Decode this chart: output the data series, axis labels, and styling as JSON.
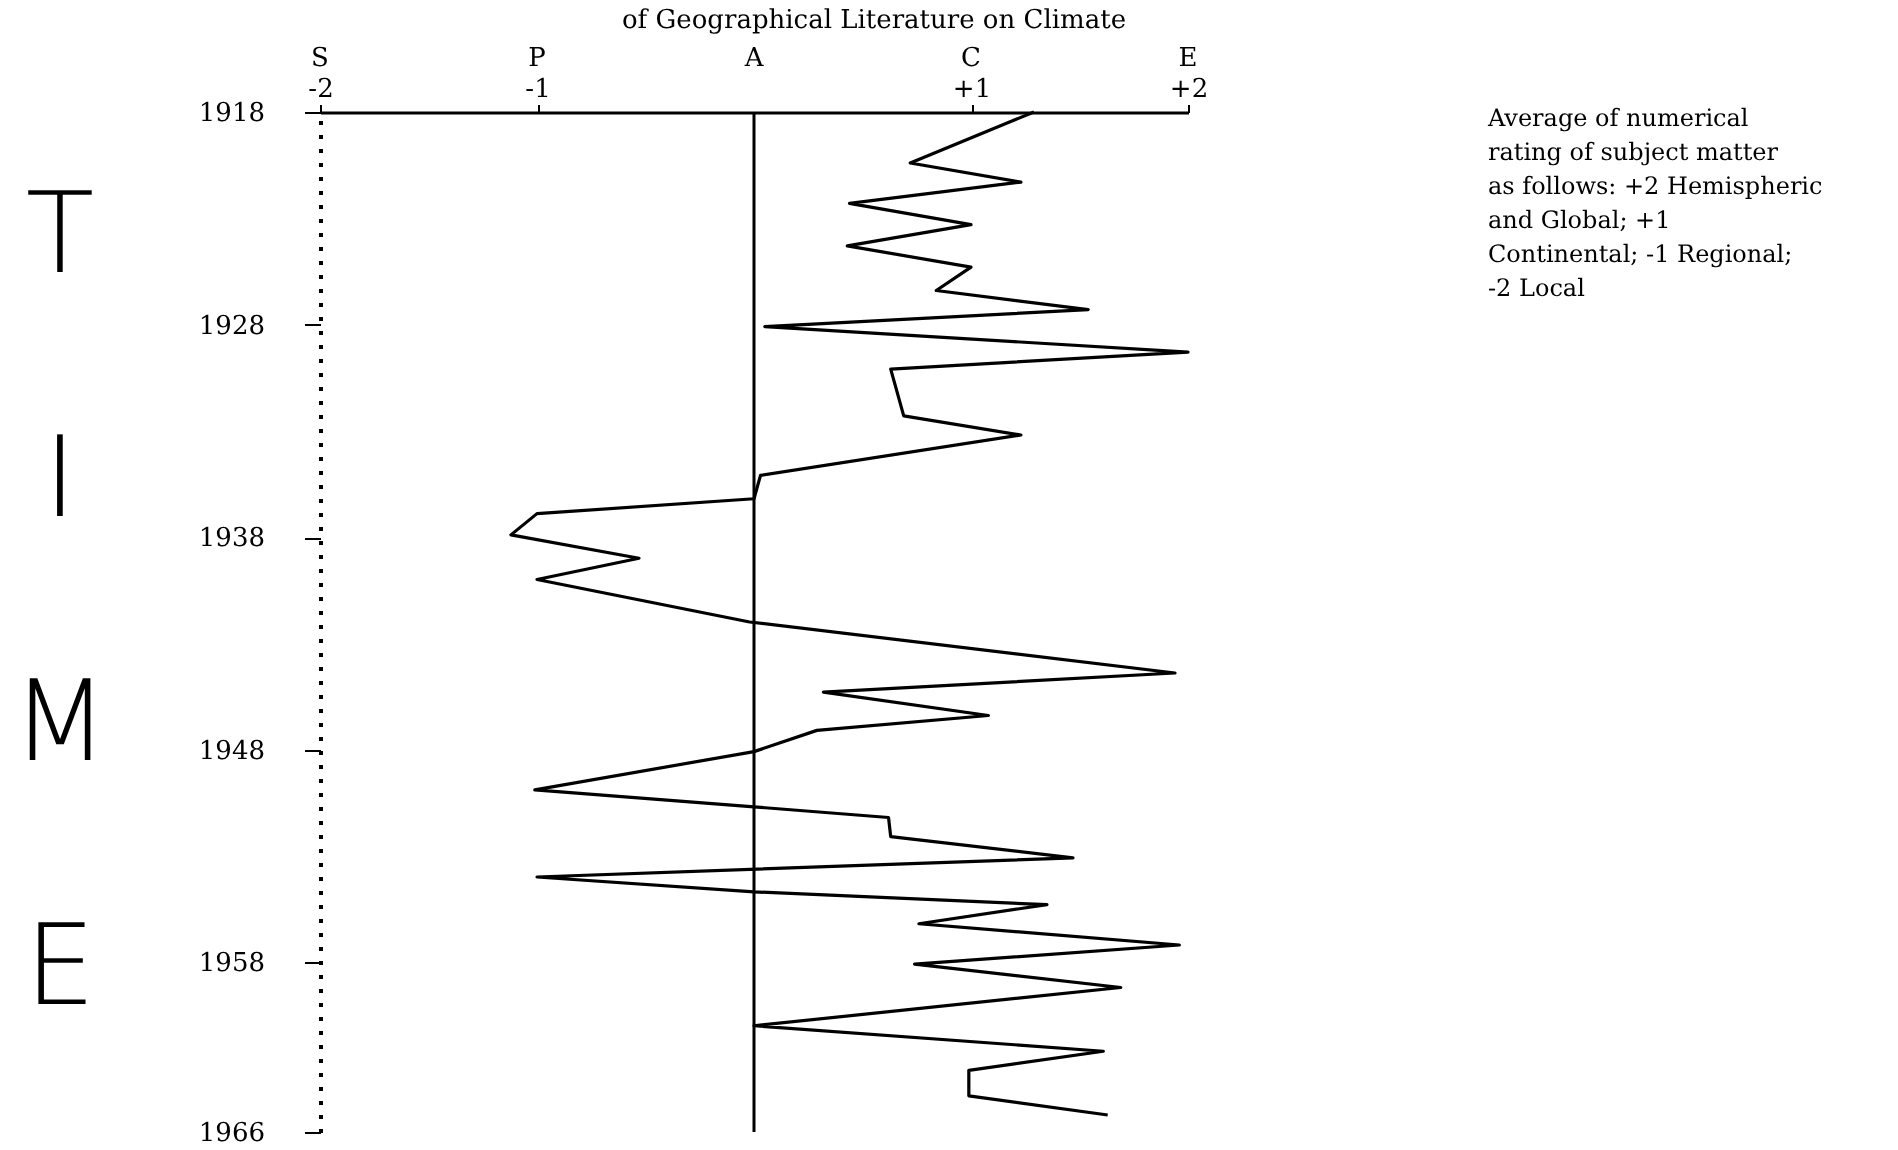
{
  "chart_data": {
    "type": "line",
    "title": "of Geographical Literature on Climate",
    "ylabel": "TIME",
    "x": [
      1.29,
      0.72,
      1.23,
      0.44,
      1.0,
      0.43,
      1.0,
      0.84,
      1.54,
      0.05,
      2.0,
      0.63,
      0.69,
      1.23,
      0.03,
      0.0,
      -1.0,
      -1.12,
      -0.53,
      -1.0,
      -0.02,
      1.94,
      0.32,
      1.08,
      0.29,
      0.0,
      -1.01,
      0.0,
      0.62,
      0.63,
      1.47,
      -1.0,
      0.0,
      1.35,
      0.76,
      1.96,
      0.74,
      1.69,
      0.0,
      1.61,
      0.99,
      0.99,
      1.63
    ],
    "values": [
      1918.0,
      1920.4,
      1921.3,
      1922.3,
      1923.3,
      1924.3,
      1925.3,
      1926.4,
      1927.3,
      1928.1,
      1929.3,
      1930.1,
      1932.3,
      1933.2,
      1935.1,
      1936.2,
      1936.9,
      1937.9,
      1939.0,
      1940.0,
      1942.0,
      1944.4,
      1945.3,
      1946.4,
      1947.1,
      1948.1,
      1949.9,
      1950.7,
      1951.2,
      1952.1,
      1953.1,
      1954.0,
      1954.7,
      1955.3,
      1956.2,
      1957.2,
      1958.1,
      1959.2,
      1961.0,
      1962.2,
      1963.1,
      1964.3,
      1965.2
    ],
    "color": "#000000",
    "xlim": [
      -2,
      2
    ],
    "xticks": [
      -2,
      -1,
      {
        "value": 1,
        "label": "+1"
      },
      {
        "value": 2,
        "label": "+2"
      }
    ],
    "ylim": [
      1966,
      1918
    ],
    "yticks": [
      1918,
      1928,
      1938,
      1948,
      1958,
      1966
    ],
    "ref_lines": [
      {
        "axis": "x",
        "value": 0,
        "label": null
      }
    ],
    "annotations": [
      "Average of numerical rating of subject matter as follows: +2 Hemispheric and Global; +1 Continental; -1 Regional; -2 Local",
      "S",
      "P",
      "A",
      "C",
      "E"
    ],
    "grid": false,
    "marker": "none",
    "line_style": "solid"
  }
}
